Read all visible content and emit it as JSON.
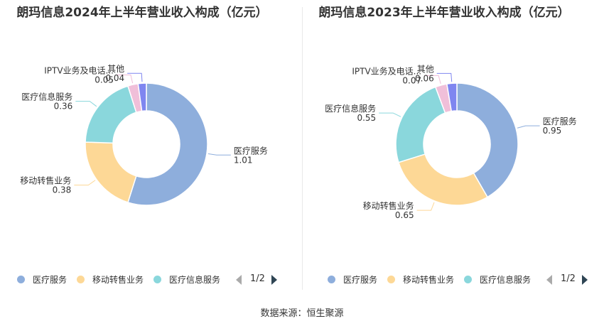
{
  "charts": [
    {
      "title": "朗玛信息2024年上半年营业收入构成（亿元）",
      "legend": [
        "医疗服务",
        "移动转售业务",
        "医疗信息服务"
      ],
      "pager": "1/2",
      "chart_data": {
        "type": "pie",
        "title": "朗玛信息2024年上半年营业收入构成（亿元）",
        "categories": [
          "医疗服务",
          "移动转售业务",
          "医疗信息服务",
          "IPTV业务及电话...",
          "其他"
        ],
        "values": [
          1.01,
          0.38,
          0.36,
          0.05,
          0.04
        ],
        "value_labels": [
          "1.01",
          "0.38",
          "0.36",
          "0.05",
          "0.04"
        ],
        "colors": [
          "#8eaedc",
          "#fdd896",
          "#8ad7dc",
          "#f0bfd9",
          "#7f86f0"
        ],
        "donut": true,
        "legend_position": "bottom"
      }
    },
    {
      "title": "朗玛信息2023年上半年营业收入构成（亿元）",
      "legend": [
        "医疗服务",
        "移动转售业务",
        "医疗信息服务"
      ],
      "pager": "1/2",
      "chart_data": {
        "type": "pie",
        "title": "朗玛信息2023年上半年营业收入构成（亿元）",
        "categories": [
          "医疗服务",
          "移动转售业务",
          "医疗信息服务",
          "IPTV业务及电话...",
          "其他"
        ],
        "values": [
          0.95,
          0.65,
          0.55,
          0.07,
          0.06
        ],
        "value_labels": [
          "0.95",
          "0.65",
          "0.55",
          "0.07",
          "0.06"
        ],
        "colors": [
          "#8eaedc",
          "#fdd896",
          "#8ad7dc",
          "#f0bfd9",
          "#7f86f0"
        ],
        "donut": true,
        "legend_position": "bottom"
      }
    }
  ],
  "source": "数据来源：恒生聚源"
}
